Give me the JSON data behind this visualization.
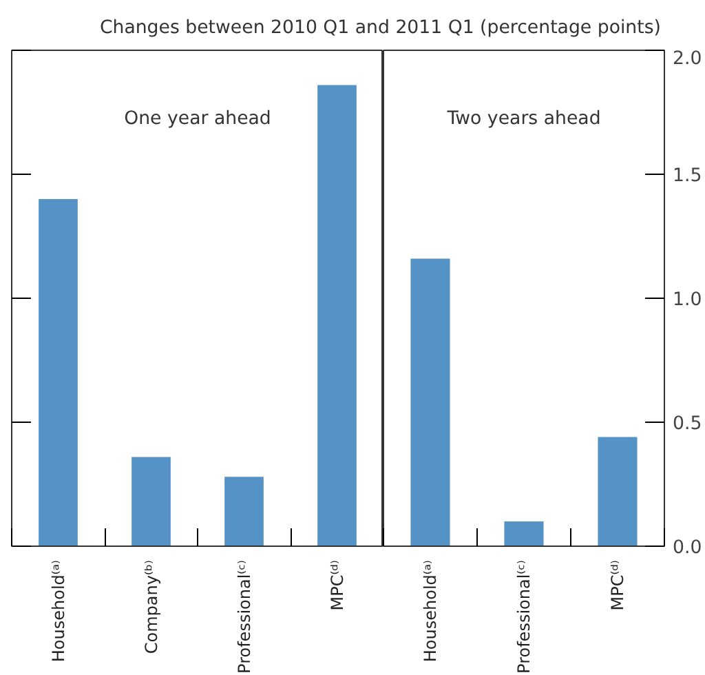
{
  "chart_data": [
    {
      "type": "bar",
      "subtitle": "Changes between 2010 Q1 and 2011 Q1 (percentage points)",
      "annotations": [
        "One year ahead"
      ],
      "categories": [
        "Household⁽ᵃ⁾",
        "Company⁽ᵇ⁾",
        "Professional⁽ᶜ⁾",
        "MPC⁽ᵈ⁾"
      ],
      "values": [
        1.4,
        0.36,
        0.28,
        1.86
      ],
      "color": "#5592c6",
      "ylim": [
        0,
        2.0
      ],
      "yticks": [
        0,
        0.5,
        1,
        1.5,
        2
      ],
      "tick_labels": "x",
      "grid": false
    },
    {
      "type": "bar",
      "annotations": [
        "Two years ahead"
      ],
      "categories": [
        "Household⁽ᵃ⁾",
        "Professional⁽ᶜ⁾",
        "MPC⁽ᵈ⁾"
      ],
      "values": [
        1.16,
        0.1,
        0.44
      ],
      "color": "#5592c6",
      "ylim": [
        0,
        2.0
      ],
      "yticks": [
        {
          "value": 0,
          "label": "0.0"
        },
        0.5,
        {
          "value": 1,
          "label": "1.0"
        },
        1.5,
        {
          "value": 2,
          "label": "2.0"
        }
      ],
      "grid": false
    }
  ]
}
